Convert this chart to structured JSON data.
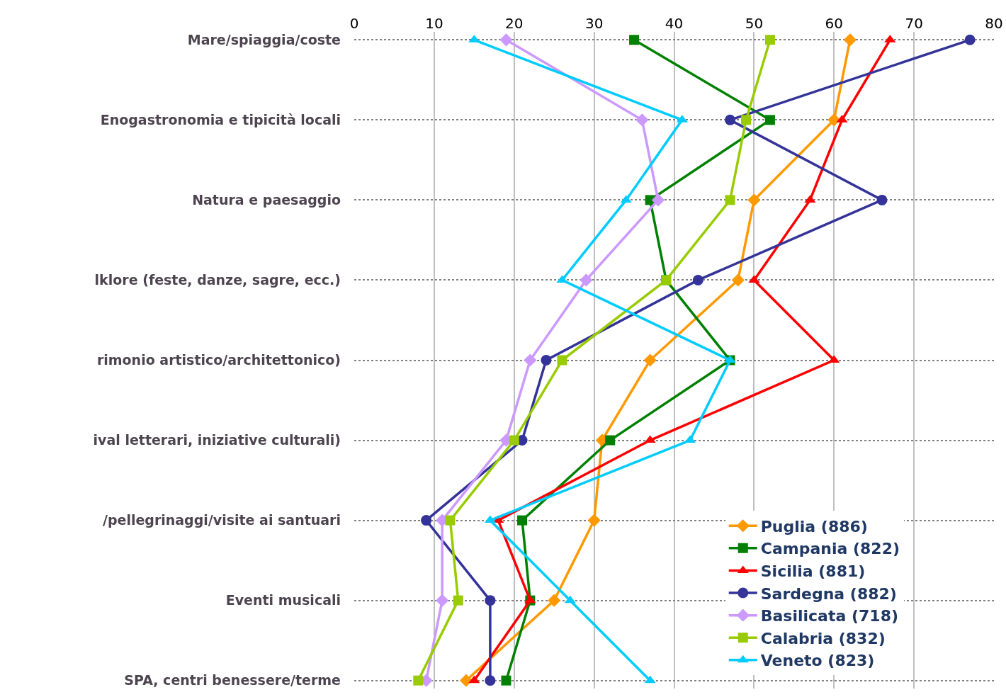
{
  "chart_data": {
    "type": "line",
    "orientation": "horizontal",
    "categories": [
      "Mare/spiaggia/coste",
      "Enogastronomia e tipicità locali",
      "Natura e paesaggio",
      "lklore (feste, danze, sagre, ecc.)",
      "rimonio artistico/architettonico)",
      "ival letterari, iniziative culturali)",
      "/pellegrinaggi/visite ai santuari",
      "Eventi musicali",
      "SPA, centri benessere/terme"
    ],
    "series": [
      {
        "name": "Puglia (886)",
        "color": "#ff9900",
        "marker": "diamond",
        "values": [
          62,
          60,
          50,
          48,
          37,
          31,
          30,
          25,
          14
        ]
      },
      {
        "name": "Campania (822)",
        "color": "#008000",
        "marker": "square",
        "values": [
          35,
          52,
          37,
          39,
          47,
          32,
          21,
          22,
          19
        ]
      },
      {
        "name": "Sicilia (881)",
        "color": "#ff0000",
        "marker": "triangle",
        "values": [
          67,
          61,
          57,
          50,
          60,
          37,
          18,
          22,
          15
        ]
      },
      {
        "name": "Sardegna (882)",
        "color": "#333399",
        "marker": "circle",
        "values": [
          77,
          47,
          66,
          43,
          24,
          21,
          9,
          17,
          17
        ]
      },
      {
        "name": "Basilicata (718)",
        "color": "#cc99ff",
        "marker": "diamond",
        "values": [
          19,
          36,
          38,
          29,
          22,
          19,
          11,
          11,
          9
        ]
      },
      {
        "name": "Calabria (832)",
        "color": "#99cc00",
        "marker": "square",
        "values": [
          52,
          49,
          47,
          39,
          26,
          20,
          12,
          13,
          8
        ]
      },
      {
        "name": "Veneto (823)",
        "color": "#00ccff",
        "marker": "triangle",
        "values": [
          15,
          41,
          34,
          26,
          47,
          42,
          17,
          27,
          37
        ]
      }
    ],
    "xlim": [
      0,
      80
    ],
    "xticks": [
      0,
      10,
      20,
      30,
      40,
      50,
      60,
      70,
      80
    ],
    "grid": true,
    "legend": "bottom right"
  }
}
